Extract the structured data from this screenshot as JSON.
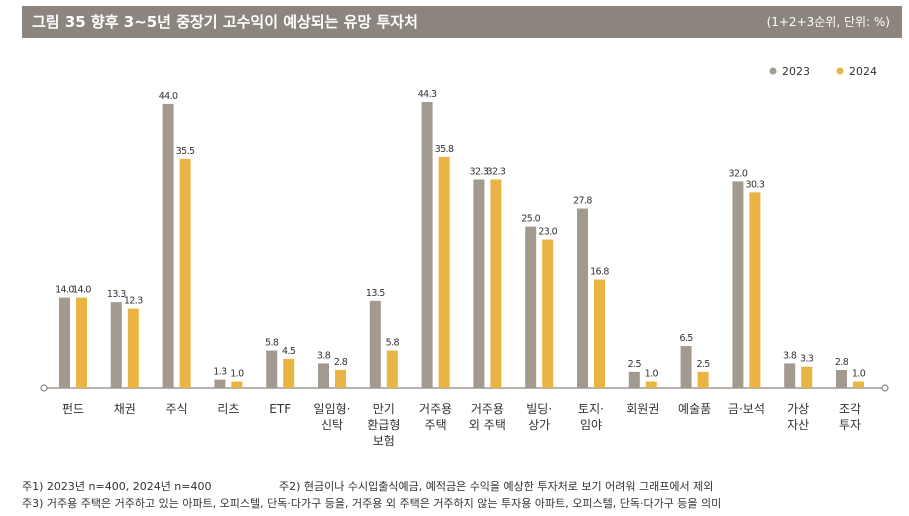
{
  "title": "그림 35  향후 3~5년 중장기 고수익이 예상되는 유망 투자처",
  "unit": "(1+2+3순위, 단위:  %)",
  "chart_data": {
    "type": "bar",
    "title": "향후 3~5년 중장기 고수익이 예상되는 유망 투자처",
    "xlabel": "",
    "ylabel": "%",
    "ylim": [
      0,
      45
    ],
    "legend_position": "top-right",
    "categories": [
      [
        "펀드"
      ],
      [
        "채권"
      ],
      [
        "주식"
      ],
      [
        "리츠"
      ],
      [
        "ETF"
      ],
      [
        "일임형·",
        "신탁"
      ],
      [
        "만기",
        "환급형",
        "보험"
      ],
      [
        "거주용",
        "주택"
      ],
      [
        "거주용",
        "외 주택"
      ],
      [
        "빌딩·",
        "상가"
      ],
      [
        "토지·",
        "임야"
      ],
      [
        "회원권"
      ],
      [
        "예술품"
      ],
      [
        "금·보석"
      ],
      [
        "가상",
        "자산"
      ],
      [
        "조각",
        "투자"
      ]
    ],
    "series": [
      {
        "name": "2023",
        "color": "#a39a8f",
        "values": [
          14.0,
          13.3,
          44.0,
          1.3,
          5.8,
          3.8,
          13.5,
          44.3,
          32.3,
          25.0,
          27.8,
          2.5,
          6.5,
          32.0,
          3.8,
          2.8
        ]
      },
      {
        "name": "2024",
        "color": "#e9b444",
        "values": [
          14.0,
          12.3,
          35.5,
          1.0,
          4.5,
          2.8,
          5.8,
          35.8,
          32.3,
          23.0,
          16.8,
          1.0,
          2.5,
          30.3,
          3.3,
          1.0
        ]
      }
    ]
  },
  "notes": [
    [
      "주1) 2023년 n=400, 2024년 n=400",
      "주2) 현금이나 수시입출식예금, 예적금은 수익을 예상한 투자처로 보기 어려워 그래프에서 제외"
    ],
    [
      "주3) 거주용 주택은 거주하고 있는 아파트, 오피스텔, 단독·다가구 등을, 거주용 외 주택은 거주하지 않는 투자용 아파트, 오피스텔, 단독·다가구 등을 의미"
    ]
  ]
}
